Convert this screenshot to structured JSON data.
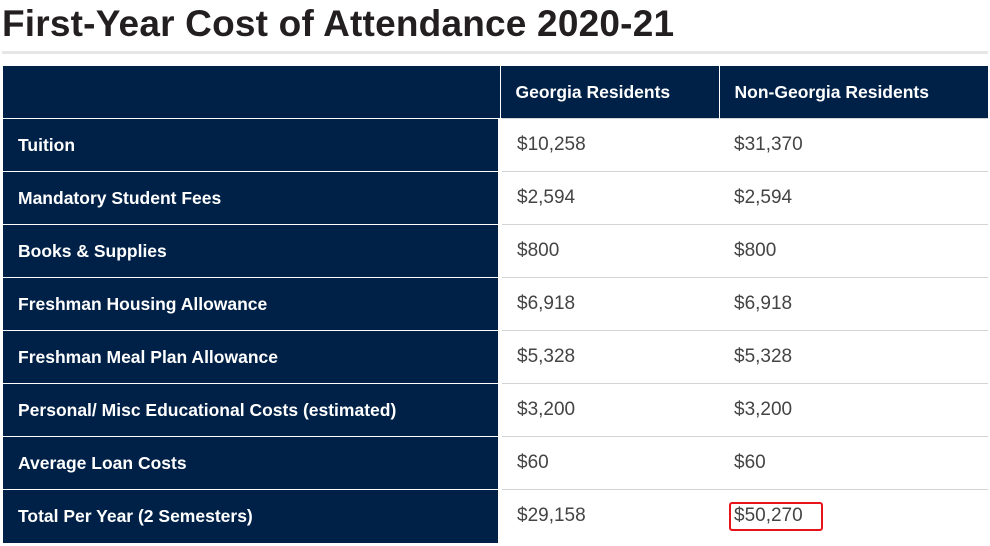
{
  "page": {
    "title": "First-Year Cost of Attendance 2020-21"
  },
  "table": {
    "headers": [
      "",
      "Georgia Residents",
      "Non-Georgia Residents"
    ],
    "rows": [
      {
        "label": "Tuition",
        "georgia": "$10,258",
        "non_georgia": "$31,370"
      },
      {
        "label": "Mandatory Student Fees",
        "georgia": "$2,594",
        "non_georgia": "$2,594"
      },
      {
        "label": "Books & Supplies",
        "georgia": "$800",
        "non_georgia": "$800"
      },
      {
        "label": "Freshman Housing Allowance",
        "georgia": "$6,918",
        "non_georgia": "$6,918"
      },
      {
        "label": "Freshman Meal Plan Allowance",
        "georgia": "$5,328",
        "non_georgia": "$5,328"
      },
      {
        "label": "Personal/ Misc Educational Costs (estimated)",
        "georgia": "$3,200",
        "non_georgia": "$3,200"
      },
      {
        "label": "Average Loan Costs",
        "georgia": "$60",
        "non_georgia": "$60"
      },
      {
        "label": "Total Per Year (2 Semesters)",
        "georgia": "$29,158",
        "non_georgia": "$50,270"
      }
    ]
  },
  "colors": {
    "header_bg": "#002147",
    "highlight_border": "#e8141c"
  }
}
